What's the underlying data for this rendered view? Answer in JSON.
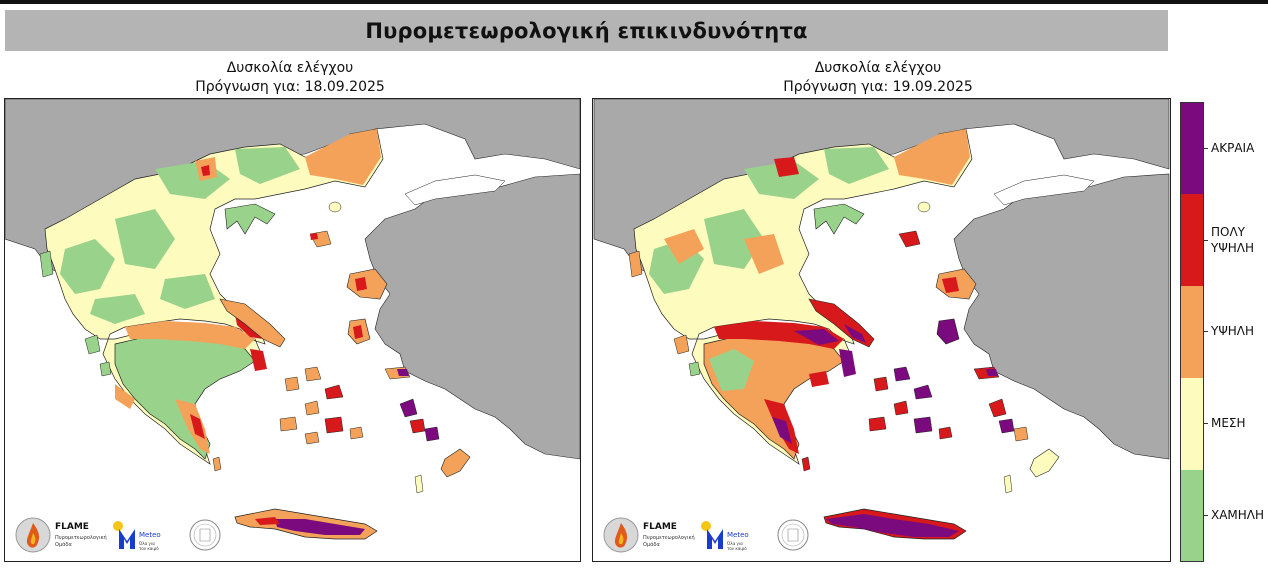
{
  "header": {
    "title": "Πυρομετεωρολογική επικινδυνότητα"
  },
  "panels": [
    {
      "line1": "Δυσκολία ελέγχου",
      "line2": "Πρόγνωση για: 18.09.2025"
    },
    {
      "line1": "Δυσκολία ελέγχου",
      "line2": "Πρόγνωση για: 19.09.2025"
    }
  ],
  "legend": {
    "levels": [
      {
        "label": "ΑΚΡΑΙΑ",
        "color": "#7b0a7e"
      },
      {
        "label_line1": "ΠΟΛΥ",
        "label_line2": "ΥΨΗΛΗ",
        "color": "#d7191c"
      },
      {
        "label": "ΥΨΗΛΗ",
        "color": "#f4a25a"
      },
      {
        "label": "ΜΕΣΗ",
        "color": "#fdfbbd"
      },
      {
        "label": "ΧΑΜΗΛΗ",
        "color": "#99d28a"
      }
    ]
  },
  "logos": {
    "flame_name": "FLAME",
    "flame_sub1": "Πυρομετεωρολογική",
    "flame_sub2": "Ομάδα",
    "meteo_name": "Meteo",
    "meteo_sub1": "Όλα για",
    "meteo_sub2": "τον καιρό"
  },
  "colors": {
    "land_outside": "#a9a9a9",
    "sea": "#ffffff",
    "low": "#99d28a",
    "medium": "#fdfbbd",
    "high": "#f4a25a",
    "very_high": "#d7191c",
    "extreme": "#7b0a7e"
  }
}
